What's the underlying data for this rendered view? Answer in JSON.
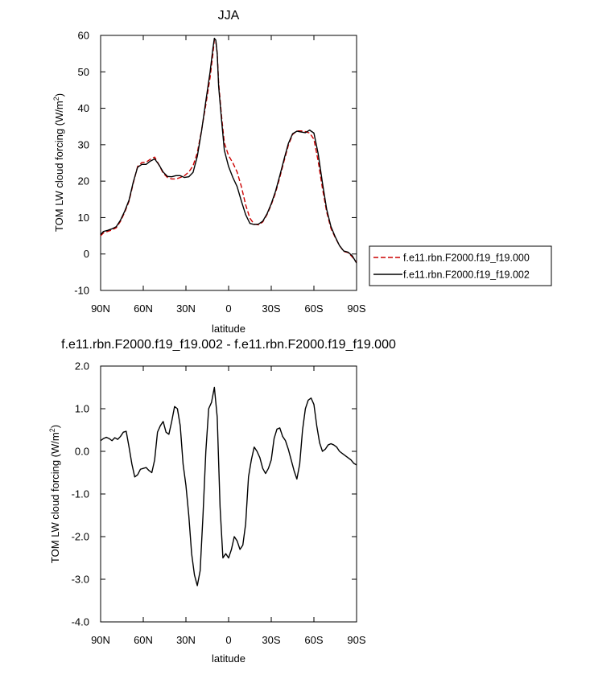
{
  "chart_data": [
    {
      "type": "line",
      "title": "JJA",
      "xlabel": "latitude",
      "ylabel": "TOM LW cloud forcing (W/m",
      "ylabel_sup": "2",
      "ylabel_close": ")",
      "xlim": [
        90,
        -90
      ],
      "ylim": [
        -10,
        60
      ],
      "x_ticks": [
        90,
        60,
        30,
        0,
        -30,
        -60,
        -90
      ],
      "x_tick_labels": [
        "90N",
        "60N",
        "30N",
        "0",
        "30S",
        "60S",
        "90S"
      ],
      "y_ticks": [
        -10,
        0,
        10,
        20,
        30,
        40,
        50,
        60
      ],
      "y_tick_labels": [
        "-10",
        "0",
        "10",
        "20",
        "30",
        "40",
        "50",
        "60"
      ],
      "legend": "right",
      "series": [
        {
          "name": "f.e11.rbn.F2000.f19_f19.000",
          "color": "#cc0000",
          "dash": "dashed",
          "x": [
            90,
            88,
            85,
            82,
            79,
            76,
            73,
            70,
            67,
            64,
            61,
            58,
            55,
            52,
            49,
            46,
            43,
            40,
            37,
            34,
            31,
            28,
            25,
            22,
            19,
            16,
            13,
            11,
            10,
            9,
            8,
            7,
            5,
            3,
            0,
            -3,
            -6,
            -9,
            -12,
            -15,
            -18,
            -21,
            -24,
            -27,
            -30,
            -33,
            -36,
            -39,
            -42,
            -45,
            -48,
            -51,
            -54,
            -57,
            -60,
            -63,
            -66,
            -69,
            -72,
            -75,
            -78,
            -81,
            -84,
            -87,
            -90
          ],
          "y": [
            5,
            5.8,
            6.2,
            6.6,
            7.2,
            9,
            11.5,
            14.5,
            19.5,
            24,
            25.1,
            25.2,
            26,
            26.6,
            24.5,
            22.2,
            21,
            20.6,
            20.6,
            21,
            21.5,
            22.5,
            24.2,
            27.8,
            34,
            41,
            48.5,
            55,
            58.8,
            58.5,
            55,
            47,
            38,
            30.5,
            27,
            25,
            22.5,
            18.5,
            13.5,
            9.8,
            8.2,
            8,
            8.8,
            10.8,
            13.5,
            16.8,
            21,
            25.5,
            29.8,
            32.8,
            33.8,
            33.8,
            33.6,
            33.2,
            31.5,
            25.5,
            18,
            11.5,
            7,
            4.5,
            2.3,
            0.7,
            0.4,
            -0.8,
            -2.3
          ]
        },
        {
          "name": "f.e11.rbn.F2000.f19_f19.002",
          "color": "#000000",
          "dash": "solid",
          "x": [
            90,
            88,
            85,
            82,
            79,
            76,
            73,
            70,
            67,
            64,
            61,
            58,
            55,
            52,
            49,
            46,
            43,
            40,
            37,
            34,
            31,
            28,
            25,
            22,
            19,
            16,
            13,
            11,
            10,
            9,
            8,
            7,
            5,
            3,
            0,
            -3,
            -6,
            -9,
            -12,
            -15,
            -18,
            -21,
            -24,
            -27,
            -30,
            -33,
            -36,
            -39,
            -42,
            -45,
            -48,
            -51,
            -54,
            -57,
            -60,
            -63,
            -66,
            -69,
            -72,
            -75,
            -78,
            -81,
            -84,
            -87,
            -90
          ],
          "y": [
            5.3,
            6.2,
            6.5,
            6.9,
            7.5,
            9.3,
            11.8,
            14.8,
            19.8,
            23.8,
            24.6,
            24.6,
            25.5,
            26.1,
            24.5,
            22.5,
            21.3,
            21.2,
            21.5,
            21.5,
            21,
            21.2,
            22.4,
            26.8,
            33.8,
            42,
            50,
            56.5,
            59.2,
            58.7,
            55,
            46,
            37,
            28.5,
            24,
            21,
            18.5,
            14.5,
            10.8,
            8.4,
            8.1,
            8.2,
            9,
            11,
            13.8,
            17.2,
            21.5,
            26,
            30.3,
            33,
            33.7,
            33.5,
            33.3,
            34,
            33.2,
            27.5,
            19.5,
            12.2,
            7.5,
            4.7,
            2.3,
            0.8,
            0.5,
            -0.5,
            -2.5
          ]
        }
      ]
    },
    {
      "type": "line",
      "title": "f.e11.rbn.F2000.f19_f19.002 - f.e11.rbn.F2000.f19_f19.000",
      "xlabel": "latitude",
      "ylabel": "TOM LW cloud forcing (W/m",
      "ylabel_sup": "2",
      "ylabel_close": ")",
      "xlim": [
        90,
        -90
      ],
      "ylim": [
        -4,
        2
      ],
      "x_ticks": [
        90,
        60,
        30,
        0,
        -30,
        -60,
        -90
      ],
      "x_tick_labels": [
        "90N",
        "60N",
        "30N",
        "0",
        "30S",
        "60S",
        "90S"
      ],
      "y_ticks": [
        -4,
        -3,
        -2,
        -1,
        0,
        1,
        2
      ],
      "y_tick_labels": [
        "-4.0",
        "-3.0",
        "-2.0",
        "-1.0",
        "0.0",
        "1.0",
        "2.0"
      ],
      "series": [
        {
          "color": "#000000",
          "dash": "solid",
          "x": [
            90,
            88,
            86,
            84,
            82,
            80,
            78,
            76,
            74,
            72,
            70,
            68,
            66,
            64,
            62,
            60,
            58,
            56,
            54,
            52,
            50,
            48,
            46,
            44,
            42,
            40,
            38,
            36,
            34,
            32,
            30,
            28,
            26,
            24,
            22,
            20,
            18,
            16,
            14,
            12,
            10,
            8,
            6,
            4,
            2,
            0,
            -2,
            -4,
            -6,
            -8,
            -10,
            -12,
            -14,
            -16,
            -18,
            -20,
            -22,
            -24,
            -26,
            -28,
            -30,
            -32,
            -34,
            -36,
            -38,
            -40,
            -42,
            -44,
            -46,
            -48,
            -50,
            -52,
            -54,
            -56,
            -58,
            -60,
            -62,
            -64,
            -66,
            -68,
            -70,
            -72,
            -74,
            -76,
            -78,
            -80,
            -82,
            -84,
            -86,
            -88,
            -90
          ],
          "y": [
            0.25,
            0.3,
            0.33,
            0.3,
            0.25,
            0.32,
            0.28,
            0.35,
            0.45,
            0.47,
            0.1,
            -0.3,
            -0.6,
            -0.55,
            -0.42,
            -0.4,
            -0.38,
            -0.45,
            -0.5,
            -0.2,
            0.45,
            0.6,
            0.7,
            0.45,
            0.4,
            0.7,
            1.05,
            1.0,
            0.6,
            -0.3,
            -0.8,
            -1.5,
            -2.4,
            -2.9,
            -3.15,
            -2.8,
            -1.5,
            0.0,
            1.0,
            1.15,
            1.5,
            0.8,
            -1.3,
            -2.5,
            -2.4,
            -2.5,
            -2.3,
            -2.0,
            -2.1,
            -2.3,
            -2.2,
            -1.7,
            -0.6,
            -0.2,
            0.1,
            0.0,
            -0.15,
            -0.4,
            -0.52,
            -0.4,
            -0.2,
            0.3,
            0.52,
            0.55,
            0.35,
            0.25,
            0.05,
            -0.2,
            -0.45,
            -0.65,
            -0.3,
            0.5,
            1.0,
            1.2,
            1.25,
            1.1,
            0.6,
            0.2,
            0.0,
            0.05,
            0.15,
            0.18,
            0.15,
            0.1,
            0.0,
            -0.05,
            -0.1,
            -0.15,
            -0.2,
            -0.28,
            -0.32
          ]
        }
      ]
    }
  ]
}
